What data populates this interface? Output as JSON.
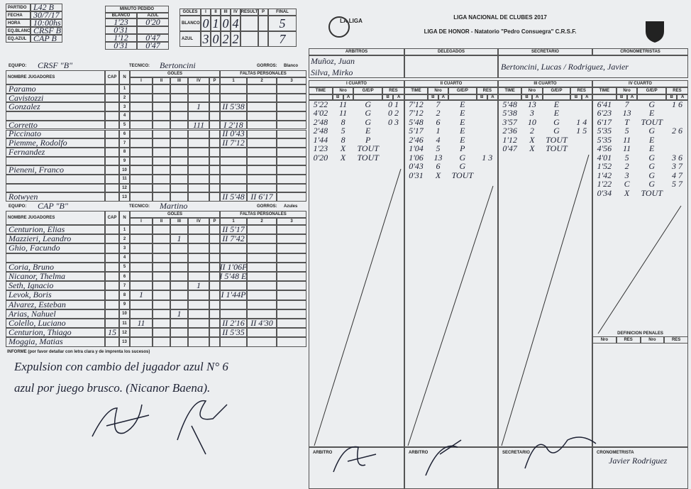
{
  "header": {
    "logo": "LA LIGA",
    "league": "LIGA NACIONAL DE CLUBES 2017",
    "venue": "LIGA DE HONOR - Natatorio \"Pedro Consuegra\" C.R.S.F."
  },
  "match_info": [
    {
      "label": "PARTIDO",
      "value": "L42 B"
    },
    {
      "label": "FECHA",
      "value": "30/7/17"
    },
    {
      "label": "HORA",
      "value": "10:00hs"
    },
    {
      "label": "EQ.BLANCO",
      "value": "CRSF B"
    },
    {
      "label": "EQ.AZUL",
      "value": "CAP B"
    }
  ],
  "timeouts": {
    "title": "MINUTO PEDIDO",
    "headers": [
      "BLANCO",
      "AZUL"
    ],
    "rows": [
      [
        "1'23",
        "0'20"
      ],
      [
        "0'31",
        ""
      ],
      [
        "1'12",
        "0'47"
      ],
      [
        "0'31",
        "0'47"
      ]
    ]
  },
  "score": {
    "headers": [
      "GOLES",
      "I",
      "II",
      "III",
      "IV",
      "RESULT",
      "P",
      "FINAL"
    ],
    "rows": [
      {
        "team": "BLANCO",
        "quarters": [
          "0",
          "1",
          "0",
          "4"
        ],
        "final": "5"
      },
      {
        "team": "AZUL",
        "quarters": [
          "3",
          "0",
          "2",
          "2"
        ],
        "final": "7"
      }
    ]
  },
  "columns": {
    "name": "NOMBRE JUGADORES",
    "cap": "CAP",
    "n": "N",
    "goals": "GOLES",
    "goal_periods": [
      "I",
      "II",
      "III",
      "IV",
      "P"
    ],
    "fouls": "FALTAS PERSONALES",
    "foul_numbers": [
      "1",
      "2",
      "3"
    ]
  },
  "teams": [
    {
      "equipo_label": "EQUIPO:",
      "name": "CRSF \"B\"",
      "tecnico_label": "TECNICO:",
      "tecnico": "Bertoncini",
      "gorros_label": "GORROS:",
      "gorros": "Blanco",
      "players": [
        {
          "n": "1",
          "name": "Paramo",
          "cap": "",
          "goals": [
            "",
            "",
            "",
            "",
            ""
          ],
          "fouls": [
            "",
            "",
            ""
          ]
        },
        {
          "n": "2",
          "name": "Cavistozzi",
          "cap": "",
          "goals": [
            "",
            "",
            "",
            "",
            ""
          ],
          "fouls": [
            "",
            "",
            ""
          ]
        },
        {
          "n": "3",
          "name": "Gonzalez",
          "cap": "",
          "goals": [
            "",
            "",
            "",
            "1",
            ""
          ],
          "fouls": [
            "II 5'38",
            "",
            ""
          ]
        },
        {
          "n": "4",
          "name": "",
          "cap": "",
          "goals": [
            "",
            "",
            "",
            "",
            ""
          ],
          "fouls": [
            "",
            "",
            ""
          ]
        },
        {
          "n": "5",
          "name": "Corretto",
          "cap": "",
          "goals": [
            "",
            "",
            "",
            "111",
            ""
          ],
          "fouls": [
            "I 2'18",
            "",
            ""
          ]
        },
        {
          "n": "6",
          "name": "Piccinato",
          "cap": "",
          "goals": [
            "",
            "",
            "",
            "",
            ""
          ],
          "fouls": [
            "II 0'43",
            "",
            ""
          ]
        },
        {
          "n": "7",
          "name": "Piemme, Rodolfo",
          "cap": "",
          "goals": [
            "",
            "",
            "",
            "",
            ""
          ],
          "fouls": [
            "II 7'12",
            "",
            ""
          ]
        },
        {
          "n": "8",
          "name": "Fernandez",
          "cap": "",
          "goals": [
            "",
            "",
            "",
            "",
            ""
          ],
          "fouls": [
            "",
            "",
            ""
          ]
        },
        {
          "n": "9",
          "name": "",
          "cap": "",
          "goals": [
            "",
            "",
            "",
            "",
            ""
          ],
          "fouls": [
            "",
            "",
            ""
          ]
        },
        {
          "n": "10",
          "name": "Pieneni, Franco",
          "cap": "",
          "goals": [
            "",
            "",
            "",
            "",
            ""
          ],
          "fouls": [
            "",
            "",
            ""
          ]
        },
        {
          "n": "11",
          "name": "",
          "cap": "",
          "goals": [
            "",
            "",
            "",
            "",
            ""
          ],
          "fouls": [
            "",
            "",
            ""
          ]
        },
        {
          "n": "12",
          "name": "",
          "cap": "",
          "goals": [
            "",
            "",
            "",
            "",
            ""
          ],
          "fouls": [
            "",
            "",
            ""
          ]
        },
        {
          "n": "13",
          "name": "Rotwyen",
          "cap": "",
          "goals": [
            "",
            "",
            "",
            "",
            ""
          ],
          "fouls": [
            "II 5'48",
            "II 6'17",
            ""
          ]
        }
      ]
    },
    {
      "equipo_label": "EQUIPO:",
      "name": "CAP \"B\"",
      "tecnico_label": "TECNICO:",
      "tecnico": "Martino",
      "gorros_label": "GORROS:",
      "gorros": "Azules",
      "players": [
        {
          "n": "1",
          "name": "Centurion, Elias",
          "cap": "",
          "goals": [
            "",
            "",
            "",
            "",
            ""
          ],
          "fouls": [
            "II 5'17",
            "",
            ""
          ]
        },
        {
          "n": "2",
          "name": "Mazzieri, Leandro",
          "cap": "",
          "goals": [
            "",
            "",
            "1",
            "",
            ""
          ],
          "fouls": [
            "II 7'42",
            "",
            ""
          ]
        },
        {
          "n": "3",
          "name": "Ghio, Facundo",
          "cap": "",
          "goals": [
            "",
            "",
            "",
            "",
            ""
          ],
          "fouls": [
            "",
            "",
            ""
          ]
        },
        {
          "n": "4",
          "name": "",
          "cap": "",
          "goals": [
            "",
            "",
            "",
            "",
            ""
          ],
          "fouls": [
            "",
            "",
            ""
          ]
        },
        {
          "n": "5",
          "name": "Coria, Bruno",
          "cap": "",
          "goals": [
            "",
            "",
            "",
            "",
            ""
          ],
          "fouls": [
            "II 1'06P",
            "",
            ""
          ]
        },
        {
          "n": "6",
          "name": "Nicanor, Thelma",
          "cap": "",
          "goals": [
            "",
            "",
            "",
            "",
            ""
          ],
          "fouls": [
            "II 5'48 Ec",
            "",
            ""
          ]
        },
        {
          "n": "7",
          "name": "Seth, Ignacio",
          "cap": "",
          "goals": [
            "",
            "",
            "",
            "1",
            ""
          ],
          "fouls": [
            "",
            "",
            ""
          ]
        },
        {
          "n": "8",
          "name": "Levok, Boris",
          "cap": "",
          "goals": [
            "1",
            "",
            "",
            "",
            ""
          ],
          "fouls": [
            "I 1'44P",
            "",
            ""
          ]
        },
        {
          "n": "9",
          "name": "Alvarez, Esteban",
          "cap": "",
          "goals": [
            "",
            "",
            "",
            "",
            ""
          ],
          "fouls": [
            "",
            "",
            ""
          ]
        },
        {
          "n": "10",
          "name": "Arias, Nahuel",
          "cap": "",
          "goals": [
            "",
            "",
            "1",
            "",
            ""
          ],
          "fouls": [
            "",
            "",
            ""
          ]
        },
        {
          "n": "11",
          "name": "Colello, Luciano",
          "cap": "",
          "goals": [
            "11",
            "",
            "",
            "",
            ""
          ],
          "fouls": [
            "II 2'16",
            "II 4'30",
            ""
          ]
        },
        {
          "n": "12",
          "name": "Centurion, Thiago",
          "cap": "15",
          "goals": [
            "",
            "",
            "",
            "",
            ""
          ],
          "fouls": [
            "II 5'35",
            "",
            ""
          ]
        },
        {
          "n": "13",
          "name": "Moggia, Matias",
          "cap": "",
          "goals": [
            "",
            "",
            "",
            "",
            ""
          ],
          "fouls": [
            "",
            "",
            ""
          ]
        }
      ]
    }
  ],
  "report": {
    "label": "INFORME (por favor detallar con letra clara y de imprenta los sucesos)",
    "lines": [
      "Expulsion con cambio del jugador azul N° 6",
      "azul por juego brusco. (Nicanor Baena)."
    ]
  },
  "officials": {
    "headers": [
      "ARBITROS",
      "DELEGADOS",
      "SECRETARIO",
      "CRONOMETRISTAS"
    ],
    "referees": [
      "Muñoz, Juan",
      "Silva, Mirko"
    ],
    "secretary": "Bertoncini, Lucas / Rodriguez, Javier"
  },
  "quarter_columns": [
    "TIME",
    "Nro",
    "G/E/P",
    "RES"
  ],
  "sides": [
    "B",
    "A"
  ],
  "quarters": [
    {
      "title": "I CUARTO",
      "rows": [
        [
          "5'22",
          "11",
          "G",
          "0 1"
        ],
        [
          "4'02",
          "11",
          "G",
          "0 2"
        ],
        [
          "2'48",
          "8",
          "G",
          "0 3"
        ],
        [
          "2'48",
          "5",
          "E",
          ""
        ],
        [
          "1'44",
          "8",
          "P",
          ""
        ],
        [
          "1'23",
          "X",
          "TOUT",
          ""
        ],
        [
          "0'20",
          "X",
          "TOUT",
          ""
        ]
      ]
    },
    {
      "title": "II CUARTO",
      "rows": [
        [
          "7'12",
          "7",
          "E",
          ""
        ],
        [
          "7'12",
          "2",
          "E",
          ""
        ],
        [
          "5'48",
          "6",
          "E",
          ""
        ],
        [
          "5'17",
          "1",
          "E",
          ""
        ],
        [
          "2'46",
          "4",
          "E",
          ""
        ],
        [
          "1'04",
          "5",
          "P",
          ""
        ],
        [
          "1'06",
          "13",
          "G",
          "1 3"
        ],
        [
          "0'43",
          "6",
          "G",
          ""
        ],
        [
          "0'31",
          "X",
          "TOUT",
          ""
        ]
      ]
    },
    {
      "title": "III CUARTO",
      "rows": [
        [
          "5'48",
          "13",
          "E",
          ""
        ],
        [
          "5'38",
          "3",
          "E",
          ""
        ],
        [
          "3'57",
          "10",
          "G",
          "1 4"
        ],
        [
          "2'36",
          "2",
          "G",
          "1 5"
        ],
        [
          "1'12",
          "X",
          "TOUT",
          ""
        ],
        [
          "0'47",
          "X",
          "TOUT",
          ""
        ]
      ]
    },
    {
      "title": "IV CUARTO",
      "rows": [
        [
          "6'41",
          "7",
          "G",
          "1 6"
        ],
        [
          "6'23",
          "13",
          "E",
          ""
        ],
        [
          "6'17",
          "T",
          "TOUT",
          ""
        ],
        [
          "5'35",
          "5",
          "G",
          "2 6"
        ],
        [
          "5'35",
          "11",
          "E",
          ""
        ],
        [
          "4'56",
          "11",
          "E",
          ""
        ],
        [
          "4'01",
          "5",
          "G",
          "3 6"
        ],
        [
          "1'52",
          "2",
          "G",
          "3 7"
        ],
        [
          "1'42",
          "3",
          "G",
          "4 7"
        ],
        [
          "1'22",
          "C",
          "G",
          "5 7"
        ],
        [
          "0'34",
          "X",
          "TOUT",
          ""
        ]
      ]
    }
  ],
  "penalties": {
    "title": "DEFINICION PENALES",
    "headers": [
      "Nro",
      "RES",
      "Nro",
      "RES"
    ]
  },
  "signatures": {
    "labels": [
      "ARBITRO",
      "ARBITRO",
      "SECRETARIO",
      "CRONOMETRISTA"
    ],
    "timekeeper": "Javier Rodriguez"
  }
}
